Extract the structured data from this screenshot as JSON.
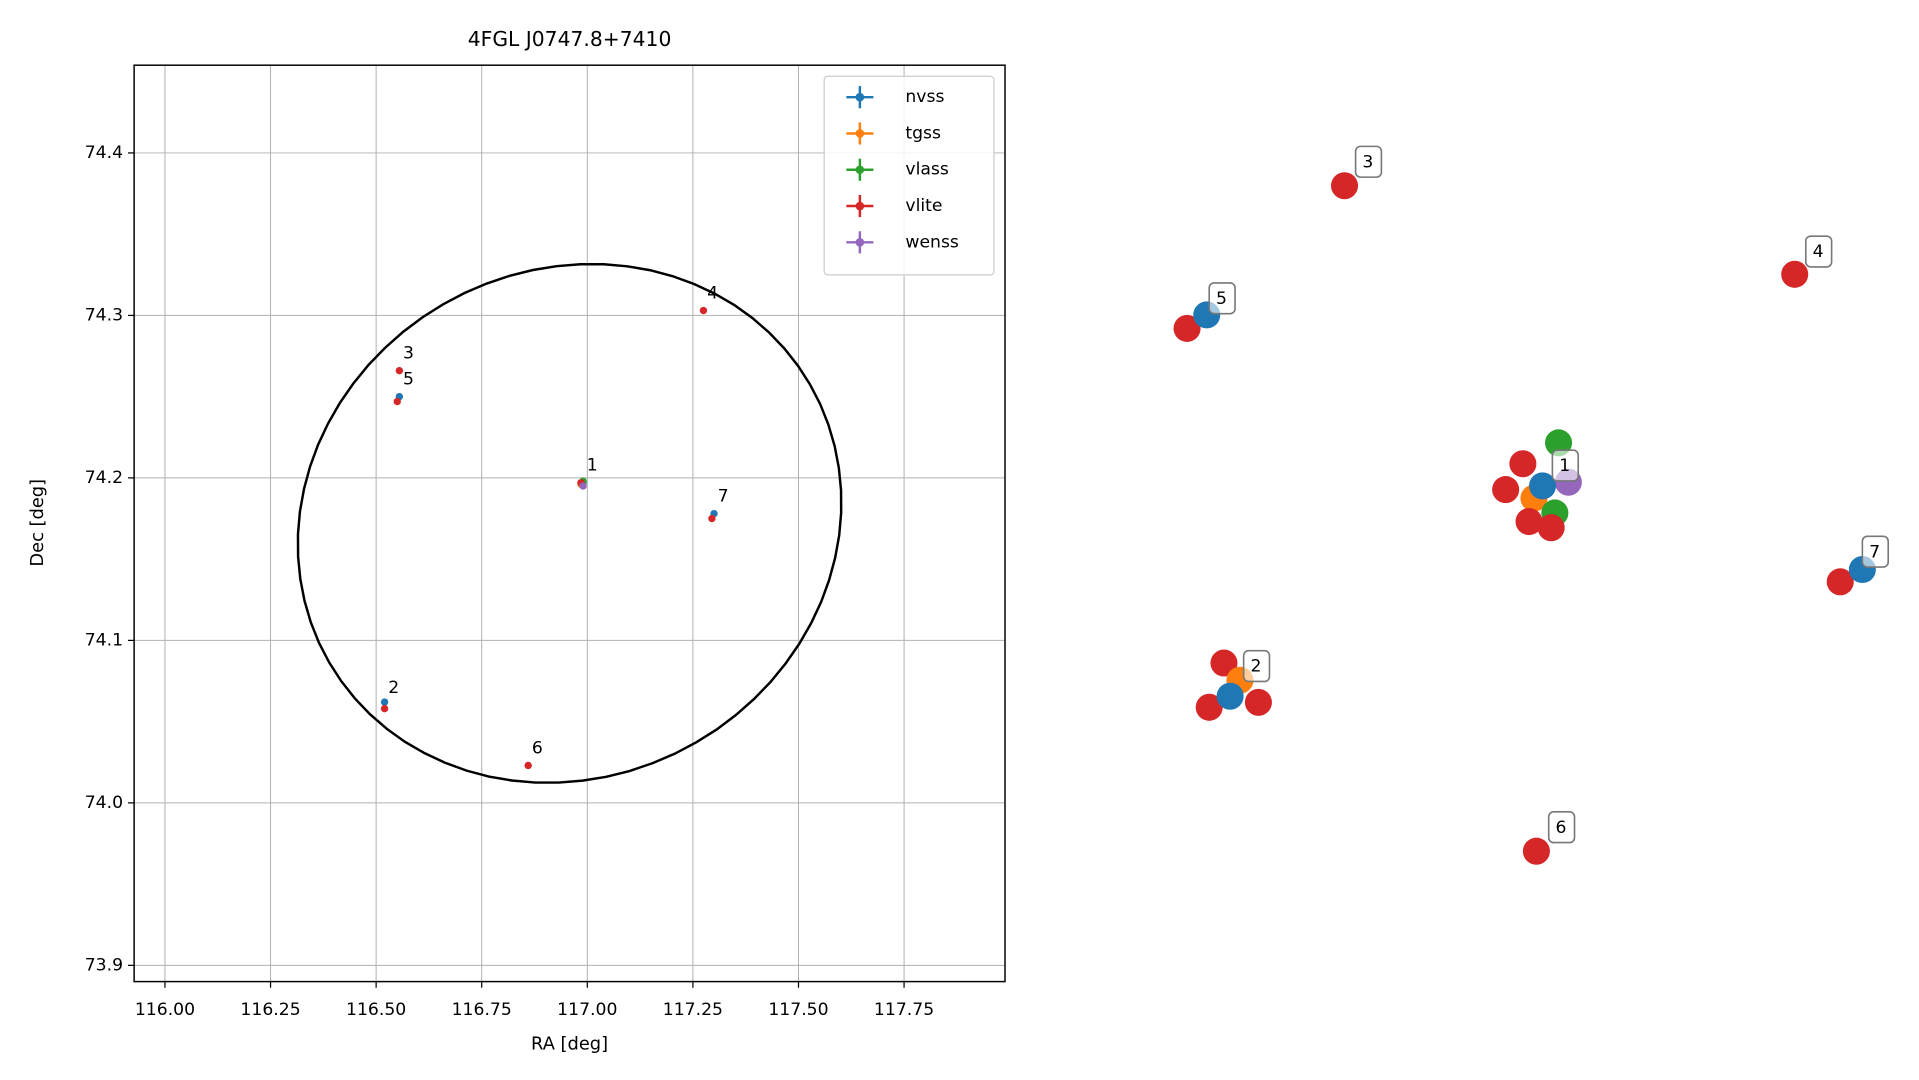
{
  "chart_data": [
    {
      "type": "scatter",
      "title": "4FGL J0747.8+7410",
      "xlabel": "RA [deg]",
      "ylabel": "Dec [deg]",
      "xlim": [
        115.927,
        117.989
      ],
      "ylim": [
        73.89,
        74.454
      ],
      "xticks": [
        {
          "value": 116,
          "label": "116.00"
        },
        116.25,
        {
          "value": 116.5,
          "label": "116.50"
        },
        116.75,
        {
          "value": 117,
          "label": "117.00"
        },
        117.25,
        {
          "value": 117.5,
          "label": "117.50"
        },
        117.75
      ],
      "yticks": [
        73.9,
        {
          "value": 74,
          "label": "74.0"
        },
        74.1,
        74.2,
        74.3,
        74.4
      ],
      "grid": true,
      "legend": "upper right",
      "series": [
        {
          "name": "nvss",
          "color": "#1f77b4",
          "x": [
            116.99,
            116.52,
            116.555,
            117.3
          ],
          "y": [
            74.197,
            74.062,
            74.25,
            74.178
          ]
        },
        {
          "name": "tgss",
          "color": "#ff7f0e",
          "x": [
            116.985
          ],
          "y": [
            74.196
          ]
        },
        {
          "name": "vlass",
          "color": "#2ca02c",
          "x": [
            116.99
          ],
          "y": [
            74.198
          ]
        },
        {
          "name": "vlite",
          "color": "#d62728",
          "x": [
            116.985,
            116.52,
            116.555,
            117.275,
            116.55,
            116.86,
            117.295
          ],
          "y": [
            74.197,
            74.058,
            74.266,
            74.303,
            74.247,
            74.023,
            74.175
          ]
        },
        {
          "name": "wenss",
          "color": "#9467bd",
          "x": [
            116.99
          ],
          "y": [
            74.195
          ]
        }
      ],
      "annotations": [
        {
          "text": "1",
          "x": 116.99,
          "y": 74.197
        },
        {
          "text": "2",
          "x": 116.52,
          "y": 74.06
        },
        {
          "text": "3",
          "x": 116.555,
          "y": 74.266
        },
        {
          "text": "4",
          "x": 117.275,
          "y": 74.303
        },
        {
          "text": "5",
          "x": 116.555,
          "y": 74.25
        },
        {
          "text": "6",
          "x": 116.86,
          "y": 74.023
        },
        {
          "text": "7",
          "x": 117.3,
          "y": 74.178
        }
      ],
      "ellipse": {
        "x": 116.958,
        "y": 74.172,
        "ra_semi_axis": 0.6576,
        "dec_semi_axis": 0.1557,
        "angle": 30
      }
    },
    {
      "type": "cluster-map",
      "labels": [
        "1",
        "2",
        "3",
        "4",
        "5",
        "6",
        "7"
      ]
    }
  ]
}
